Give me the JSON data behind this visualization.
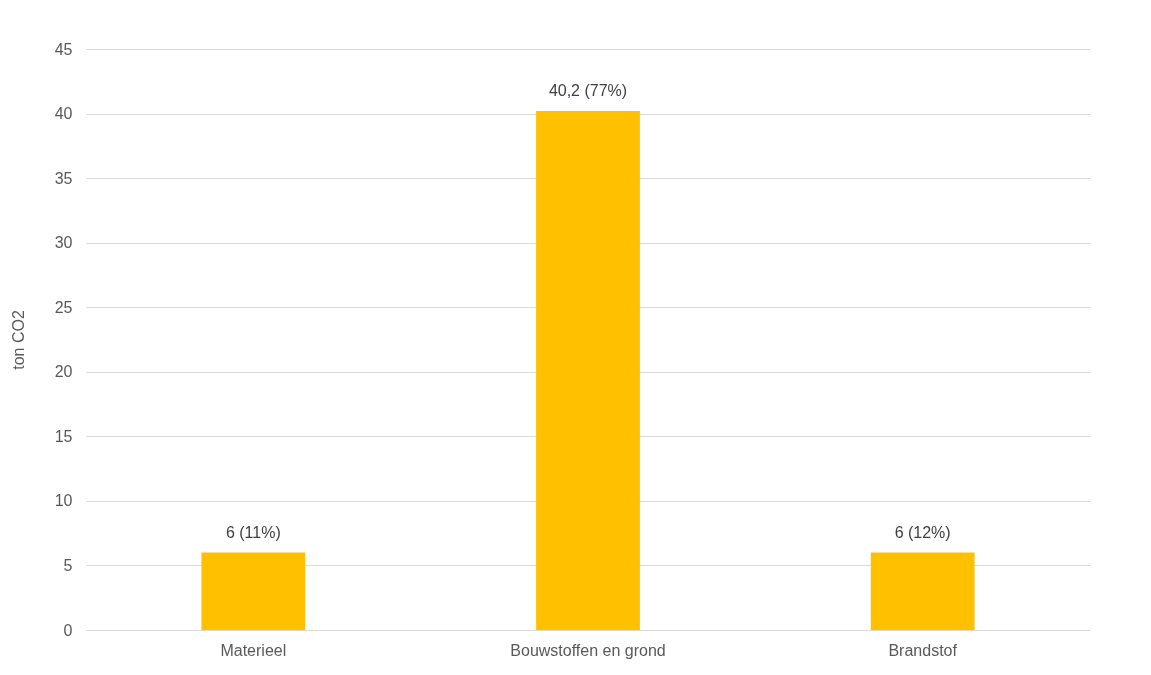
{
  "chart_data": {
    "type": "bar",
    "ylabel": "ton CO2",
    "categories": [
      "Materieel",
      "Bouwstoffen en grond",
      "Brandstof"
    ],
    "values": [
      6,
      40.2,
      6
    ],
    "value_labels": [
      "6 (11%)",
      "40,2 (77%)",
      "6 (12%)"
    ],
    "color": "#ffc000",
    "ylim": [
      0,
      45
    ],
    "yticks": [
      0,
      5,
      10,
      15,
      20,
      25,
      30,
      35,
      40,
      45
    ],
    "grid": "y"
  }
}
